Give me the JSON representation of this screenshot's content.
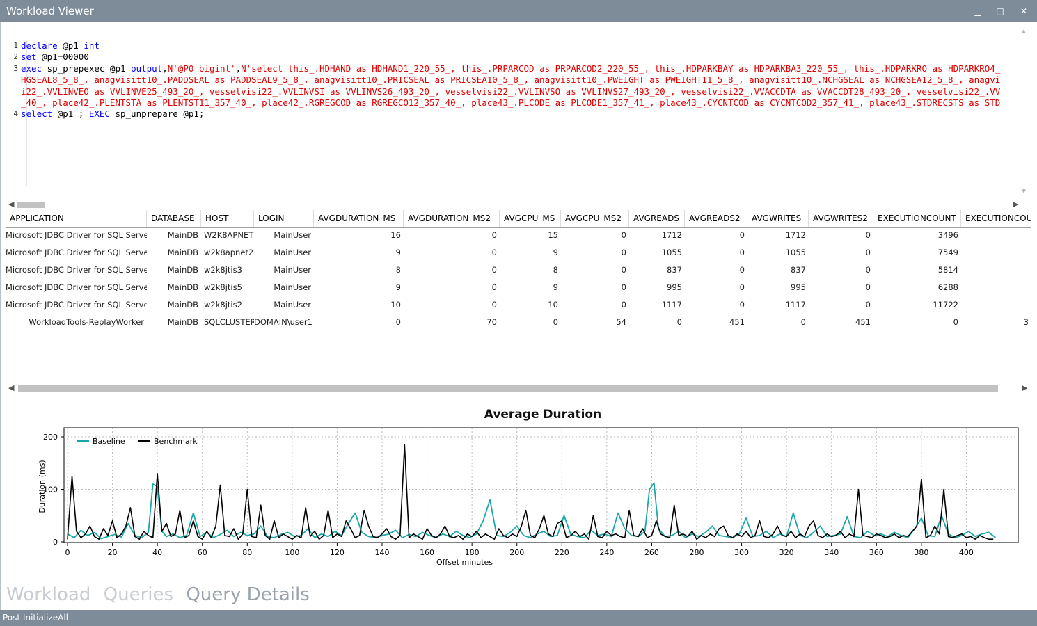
{
  "window": {
    "title": "Workload Viewer",
    "controls": {
      "minimize": "▁",
      "maximize": "□",
      "close": "✕"
    }
  },
  "editor": {
    "line_numbers": [
      "1",
      "2",
      "3",
      "",
      "",
      "",
      "4"
    ],
    "lines": [
      [
        {
          "c": "kw",
          "t": "declare "
        },
        {
          "c": "tx",
          "t": "@p1 "
        },
        {
          "c": "kw",
          "t": "int"
        }
      ],
      [
        {
          "c": "kw",
          "t": "set "
        },
        {
          "c": "tx",
          "t": "@p1=00000"
        }
      ],
      [
        {
          "c": "kw",
          "t": "exec "
        },
        {
          "c": "tx",
          "t": "sp_prepexec @p1 "
        },
        {
          "c": "kw",
          "t": "output"
        },
        {
          "c": "tx",
          "t": ","
        },
        {
          "c": "str",
          "t": "N'@P0 bigint'"
        },
        {
          "c": "tx",
          "t": ","
        },
        {
          "c": "str",
          "t": "N'select this_.HDHAND as HDHAND1_220_55_, this_.PRPARCOD as PRPARCOD2_220_55_, this_.HDPARKBAY as HDPARKBA3_220_55_, this_.HDPARKRO as HDPARKRO4_"
        }
      ],
      [
        {
          "c": "str",
          "t": "HGSEAL8_5_8_, anagvisitt10_.PADDSEAL as PADDSEAL9_5_8_, anagvisitt10_.PRICSEAL as PRICSEA10_5_8_, anagvisitt10_.PWEIGHT as PWEIGHT11_5_8_, anagvisitt10_.NCHGSEAL as NCHGSEA12_5_8_, anagvi"
        }
      ],
      [
        {
          "c": "str",
          "t": "i22_.VVLINVEO as VVLINVE25_493_20_, vesselvisi22_.VVLINVSI as VVLINVS26_493_20_, vesselvisi22_.VVLINVSO as VVLINVS27_493_20_, vesselvisi22_.VVACCDTA as VVACCDT28_493_20_, vesselvisi22_.VV"
        }
      ],
      [
        {
          "c": "str",
          "t": "_40_, place42_.PLENTSTA as PLENTST11_357_40_, place42_.RGREGCOD as RGREGCO12_357_40_, place43_.PLCODE as PLCODE1_357_41_, place43_.CYCNTCOD as CYCNTCOD2_357_41_, place43_.STDRECSTS as STD"
        }
      ],
      [
        {
          "c": "kw",
          "t": "select "
        },
        {
          "c": "tx",
          "t": "@p1 ; "
        },
        {
          "c": "kw",
          "t": "EXEC "
        },
        {
          "c": "tx",
          "t": "sp_unprepare @p1;"
        }
      ]
    ]
  },
  "grid": {
    "columns": [
      "APPLICATION",
      "DATABASE",
      "HOST",
      "LOGIN",
      "AVGDURATION_MS",
      "AVGDURATION_MS2",
      "AVGCPU_MS",
      "AVGCPU_MS2",
      "AVGREADS",
      "AVGREADS2",
      "AVGWRITES",
      "AVGWRITES2",
      "EXECUTIONCOUNT",
      "EXECUTIONCOU"
    ],
    "rows": [
      [
        "Microsoft JDBC Driver for SQL Server",
        "MainDB",
        "W2K8APNET",
        "MainUser",
        "16",
        "0",
        "15",
        "0",
        "1712",
        "0",
        "1712",
        "0",
        "3496",
        ""
      ],
      [
        "Microsoft JDBC Driver for SQL Server",
        "MainDB",
        "w2k8apnet2",
        "MainUser",
        "9",
        "0",
        "9",
        "0",
        "1055",
        "0",
        "1055",
        "0",
        "7549",
        ""
      ],
      [
        "Microsoft JDBC Driver for SQL Server",
        "MainDB",
        "w2k8jtis3",
        "MainUser",
        "8",
        "0",
        "8",
        "0",
        "837",
        "0",
        "837",
        "0",
        "5814",
        ""
      ],
      [
        "Microsoft JDBC Driver for SQL Server",
        "MainDB",
        "w2k8jtis5",
        "MainUser",
        "9",
        "0",
        "9",
        "0",
        "995",
        "0",
        "995",
        "0",
        "6288",
        ""
      ],
      [
        "Microsoft JDBC Driver for SQL Server",
        "MainDB",
        "w2k8jtis2",
        "MainUser",
        "10",
        "0",
        "10",
        "0",
        "1117",
        "0",
        "1117",
        "0",
        "11722",
        ""
      ],
      [
        "WorkloadTools-ReplayWorker",
        "MainDB",
        "SQLCLUSTER",
        "DOMAIN\\user1",
        "0",
        "70",
        "0",
        "54",
        "0",
        "451",
        "0",
        "451",
        "0",
        "3"
      ]
    ]
  },
  "chart_data": {
    "type": "line",
    "title": "Average Duration",
    "xlabel": "Offset minutes",
    "ylabel": "Duration (ms)",
    "xlim": [
      0,
      420
    ],
    "ylim": [
      0,
      200
    ],
    "xticks": [
      0,
      20,
      40,
      60,
      80,
      100,
      120,
      140,
      160,
      180,
      200,
      220,
      240,
      260,
      280,
      300,
      320,
      340,
      360,
      380,
      400
    ],
    "yticks": [
      0,
      100,
      200
    ],
    "grid": true,
    "legend": "top-left",
    "series": [
      {
        "name": "Baseline",
        "color": "#1aa7a7",
        "x": [
          0,
          3,
          6,
          9,
          12,
          15,
          18,
          21,
          24,
          27,
          30,
          33,
          36,
          38,
          40,
          42,
          44,
          47,
          50,
          53,
          56,
          59,
          62,
          65,
          68,
          71,
          74,
          77,
          80,
          83,
          86,
          89,
          92,
          95,
          98,
          101,
          104,
          107,
          110,
          113,
          116,
          119,
          122,
          125,
          128,
          131,
          134,
          137,
          140,
          143,
          146,
          149,
          152,
          155,
          158,
          161,
          164,
          167,
          170,
          173,
          176,
          179,
          182,
          185,
          188,
          191,
          194,
          197,
          200,
          203,
          206,
          209,
          212,
          215,
          218,
          221,
          224,
          227,
          230,
          233,
          236,
          239,
          242,
          245,
          248,
          251,
          254,
          257,
          259,
          261,
          263,
          266,
          269,
          272,
          275,
          278,
          281,
          284,
          287,
          290,
          293,
          296,
          299,
          302,
          305,
          308,
          311,
          314,
          317,
          320,
          323,
          326,
          329,
          332,
          335,
          338,
          341,
          344,
          347,
          350,
          353,
          356,
          359,
          362,
          365,
          368,
          371,
          374,
          377,
          380,
          383,
          386,
          389,
          392,
          395,
          398,
          401,
          404,
          407,
          410,
          413
        ],
        "values": [
          15,
          8,
          22,
          12,
          18,
          6,
          10,
          14,
          9,
          35,
          12,
          8,
          18,
          110,
          105,
          20,
          10,
          15,
          8,
          12,
          55,
          10,
          18,
          8,
          14,
          22,
          10,
          18,
          12,
          15,
          30,
          10,
          8,
          14,
          18,
          10,
          12,
          25,
          8,
          15,
          10,
          20,
          12,
          35,
          55,
          18,
          10,
          8,
          12,
          15,
          22,
          8,
          14,
          10,
          18,
          12,
          8,
          15,
          10,
          20,
          12,
          8,
          15,
          40,
          80,
          12,
          10,
          18,
          30,
          12,
          8,
          15,
          20,
          10,
          12,
          50,
          14,
          10,
          8,
          22,
          12,
          15,
          10,
          55,
          25,
          12,
          10,
          20,
          100,
          112,
          25,
          10,
          12,
          20,
          8,
          15,
          10,
          18,
          30,
          12,
          10,
          8,
          15,
          45,
          10,
          12,
          20,
          8,
          15,
          10,
          55,
          12,
          8,
          18,
          30,
          10,
          12,
          15,
          48,
          10,
          8,
          20,
          12,
          15,
          10,
          18,
          12,
          8,
          25,
          45,
          12,
          10,
          50,
          15,
          8,
          12,
          20,
          10,
          15,
          18,
          8
        ]
      },
      {
        "name": "Benchmark",
        "color": "#000000",
        "x": [
          0,
          2,
          4,
          6,
          8,
          10,
          12,
          14,
          16,
          18,
          20,
          22,
          24,
          26,
          28,
          30,
          32,
          34,
          36,
          38,
          40,
          42,
          44,
          46,
          48,
          50,
          52,
          54,
          56,
          58,
          60,
          62,
          64,
          66,
          68,
          70,
          72,
          74,
          76,
          78,
          80,
          82,
          84,
          86,
          88,
          90,
          92,
          94,
          96,
          98,
          100,
          102,
          104,
          106,
          108,
          110,
          112,
          114,
          116,
          118,
          120,
          122,
          124,
          126,
          128,
          130,
          132,
          134,
          136,
          138,
          140,
          142,
          144,
          146,
          148,
          150,
          152,
          154,
          156,
          158,
          160,
          162,
          164,
          166,
          168,
          170,
          172,
          174,
          176,
          178,
          180,
          182,
          184,
          186,
          188,
          190,
          192,
          194,
          196,
          198,
          200,
          202,
          204,
          206,
          208,
          210,
          212,
          214,
          216,
          218,
          220,
          222,
          224,
          226,
          228,
          230,
          232,
          234,
          236,
          238,
          240,
          242,
          244,
          246,
          248,
          250,
          252,
          254,
          256,
          258,
          260,
          262,
          264,
          266,
          268,
          270,
          272,
          274,
          276,
          278,
          280,
          282,
          284,
          286,
          288,
          290,
          292,
          294,
          296,
          298,
          300,
          302,
          304,
          306,
          308,
          310,
          312,
          314,
          316,
          318,
          320,
          322,
          324,
          326,
          328,
          330,
          332,
          334,
          336,
          338,
          340,
          342,
          344,
          346,
          348,
          350,
          352,
          354,
          356,
          358,
          360,
          362,
          364,
          366,
          368,
          370,
          372,
          374,
          376,
          378,
          380,
          382,
          384,
          386,
          388,
          390,
          392,
          394,
          396,
          398,
          400,
          402,
          404,
          406,
          408,
          410,
          412
        ],
        "values": [
          5,
          125,
          20,
          8,
          15,
          30,
          10,
          5,
          25,
          12,
          40,
          8,
          15,
          30,
          65,
          10,
          5,
          20,
          12,
          8,
          130,
          20,
          35,
          10,
          15,
          60,
          8,
          12,
          40,
          10,
          5,
          20,
          8,
          30,
          108,
          12,
          10,
          25,
          5,
          15,
          100,
          10,
          8,
          70,
          12,
          5,
          40,
          8,
          15,
          10,
          5,
          12,
          8,
          65,
          10,
          20,
          5,
          12,
          60,
          8,
          15,
          10,
          40,
          25,
          8,
          12,
          60,
          30,
          10,
          8,
          15,
          25,
          10,
          5,
          12,
          185,
          8,
          15,
          10,
          5,
          25,
          12,
          8,
          15,
          30,
          10,
          8,
          12,
          5,
          15,
          10,
          20,
          8,
          15,
          10,
          5,
          25,
          12,
          8,
          15,
          10,
          30,
          60,
          12,
          8,
          25,
          50,
          15,
          10,
          35,
          40,
          8,
          12,
          20,
          10,
          15,
          5,
          50,
          10,
          8,
          20,
          12,
          15,
          10,
          8,
          60,
          12,
          10,
          25,
          8,
          12,
          40,
          15,
          10,
          8,
          70,
          12,
          15,
          10,
          20,
          5,
          12,
          8,
          15,
          10,
          25,
          30,
          12,
          8,
          15,
          10,
          20,
          8,
          12,
          40,
          10,
          8,
          15,
          30,
          12,
          10,
          20,
          8,
          15,
          10,
          30,
          40,
          12,
          8,
          15,
          10,
          12,
          20,
          8,
          15,
          10,
          100,
          12,
          10,
          8,
          15,
          12,
          8,
          10,
          15,
          8,
          12,
          10,
          20,
          30,
          120,
          8,
          12,
          30,
          15,
          100,
          10,
          8,
          12,
          15,
          8,
          10,
          5,
          12,
          8,
          5,
          5
        ]
      }
    ]
  },
  "nav": {
    "tabs": [
      "Workload",
      "Queries",
      "Query Details"
    ],
    "active": "Query Details"
  },
  "status": {
    "text": "Post InitializeAll"
  }
}
